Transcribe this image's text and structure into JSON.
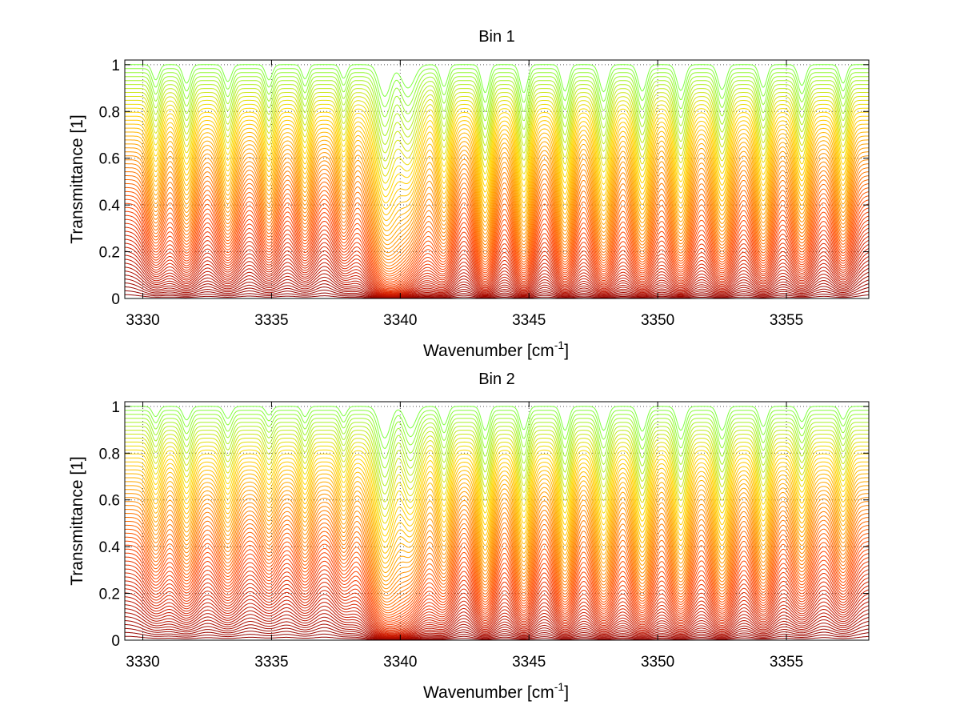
{
  "chart_data": [
    {
      "type": "line",
      "title": "Bin 1",
      "xlabel": "Wavenumber [cm",
      "xlabel_sup": "-1",
      "xlabel_end": "]",
      "ylabel": "Transmittance [1]",
      "xlim": [
        3329.3,
        3358.2
      ],
      "ylim": [
        0,
        1.02
      ],
      "xticks": [
        3330,
        3335,
        3340,
        3345,
        3350,
        3355
      ],
      "xtick_labels": [
        "3330",
        "3335",
        "3340",
        "3345",
        "3350",
        "3355"
      ],
      "yticks": [
        0,
        0.2,
        0.4,
        0.6,
        0.8,
        1
      ],
      "ytick_labels": [
        "0",
        "0.2",
        "0.4",
        "0.6",
        "0.8",
        "1"
      ],
      "grid": "dotted",
      "series_count": 60,
      "series_max_transmittance": [
        1.0,
        0.2
      ],
      "colormap": [
        "#7fff3f",
        "#ffd700",
        "#ff8c00",
        "#ff4500",
        "#cc1a00",
        "#8b0000"
      ],
      "absorption_lines": [
        {
          "x": 3330.5,
          "depth": 0.45,
          "width": 0.18
        },
        {
          "x": 3331.7,
          "depth": 0.55,
          "width": 0.2
        },
        {
          "x": 3333.3,
          "depth": 0.5,
          "width": 0.2
        },
        {
          "x": 3334.9,
          "depth": 0.45,
          "width": 0.18
        },
        {
          "x": 3336.3,
          "depth": 0.42,
          "width": 0.17
        },
        {
          "x": 3337.8,
          "depth": 0.4,
          "width": 0.17
        },
        {
          "x": 3339.4,
          "depth": 0.97,
          "width": 0.3
        },
        {
          "x": 3340.3,
          "depth": 0.7,
          "width": 0.35
        },
        {
          "x": 3341.7,
          "depth": 0.65,
          "width": 0.2
        },
        {
          "x": 3343.3,
          "depth": 0.85,
          "width": 0.2
        },
        {
          "x": 3344.8,
          "depth": 0.85,
          "width": 0.2
        },
        {
          "x": 3346.4,
          "depth": 0.8,
          "width": 0.2
        },
        {
          "x": 3347.9,
          "depth": 0.82,
          "width": 0.22
        },
        {
          "x": 3349.4,
          "depth": 0.8,
          "width": 0.22
        },
        {
          "x": 3350.9,
          "depth": 0.78,
          "width": 0.22
        },
        {
          "x": 3352.5,
          "depth": 0.75,
          "width": 0.22
        },
        {
          "x": 3354.1,
          "depth": 0.68,
          "width": 0.2
        },
        {
          "x": 3355.6,
          "depth": 0.62,
          "width": 0.2
        },
        {
          "x": 3357.2,
          "depth": 0.55,
          "width": 0.18
        }
      ]
    },
    {
      "type": "line",
      "title": "Bin 2",
      "xlabel": "Wavenumber [cm",
      "xlabel_sup": "-1",
      "xlabel_end": "]",
      "ylabel": "Transmittance [1]",
      "xlim": [
        3329.3,
        3358.2
      ],
      "ylim": [
        0,
        1.02
      ],
      "xticks": [
        3330,
        3335,
        3340,
        3345,
        3350,
        3355
      ],
      "xtick_labels": [
        "3330",
        "3335",
        "3340",
        "3345",
        "3350",
        "3355"
      ],
      "yticks": [
        0,
        0.2,
        0.4,
        0.6,
        0.8,
        1
      ],
      "ytick_labels": [
        "0",
        "0.2",
        "0.4",
        "0.6",
        "0.8",
        "1"
      ],
      "grid": "dotted",
      "series_count": 60,
      "series_max_transmittance": [
        1.0,
        0.2
      ],
      "colormap": [
        "#7fff3f",
        "#ffd700",
        "#ff8c00",
        "#ff4500",
        "#cc1a00",
        "#8b0000"
      ],
      "absorption_lines": [
        {
          "x": 3330.5,
          "depth": 0.3,
          "width": 0.18
        },
        {
          "x": 3331.7,
          "depth": 0.4,
          "width": 0.2
        },
        {
          "x": 3333.3,
          "depth": 0.35,
          "width": 0.2
        },
        {
          "x": 3334.9,
          "depth": 0.25,
          "width": 0.18
        },
        {
          "x": 3336.3,
          "depth": 0.3,
          "width": 0.17
        },
        {
          "x": 3337.8,
          "depth": 0.28,
          "width": 0.17
        },
        {
          "x": 3339.4,
          "depth": 0.97,
          "width": 0.3
        },
        {
          "x": 3340.4,
          "depth": 0.65,
          "width": 0.3
        },
        {
          "x": 3341.7,
          "depth": 0.55,
          "width": 0.2
        },
        {
          "x": 3343.3,
          "depth": 0.72,
          "width": 0.2
        },
        {
          "x": 3344.8,
          "depth": 0.7,
          "width": 0.2
        },
        {
          "x": 3346.4,
          "depth": 0.72,
          "width": 0.2
        },
        {
          "x": 3347.9,
          "depth": 0.72,
          "width": 0.22
        },
        {
          "x": 3349.4,
          "depth": 0.75,
          "width": 0.22
        },
        {
          "x": 3350.9,
          "depth": 0.72,
          "width": 0.22
        },
        {
          "x": 3352.5,
          "depth": 0.72,
          "width": 0.22
        },
        {
          "x": 3354.1,
          "depth": 0.6,
          "width": 0.2
        },
        {
          "x": 3355.6,
          "depth": 0.45,
          "width": 0.2
        },
        {
          "x": 3357.2,
          "depth": 0.38,
          "width": 0.18
        }
      ]
    }
  ]
}
